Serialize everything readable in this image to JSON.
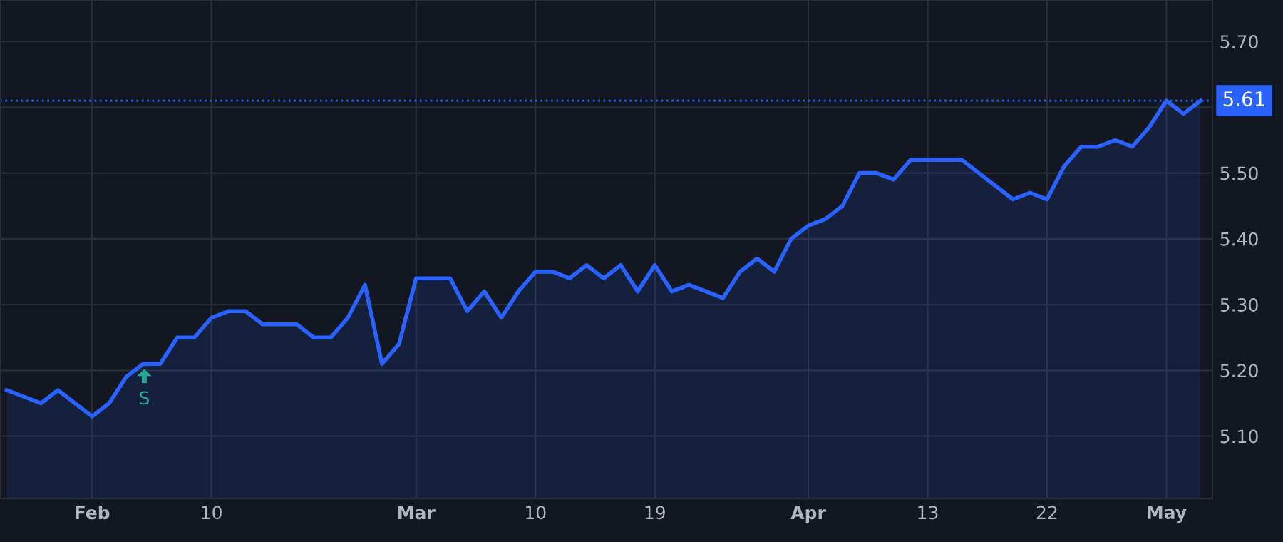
{
  "chart_data": {
    "type": "area",
    "categories": [
      null,
      null,
      null,
      null,
      null,
      "Feb",
      null,
      null,
      null,
      null,
      null,
      null,
      "10",
      null,
      null,
      null,
      null,
      null,
      null,
      null,
      null,
      null,
      null,
      null,
      "Mar",
      null,
      null,
      null,
      null,
      null,
      null,
      "10",
      null,
      null,
      null,
      null,
      null,
      null,
      "19",
      null,
      null,
      null,
      null,
      null,
      null,
      null,
      null,
      "Apr",
      null,
      null,
      null,
      null,
      null,
      null,
      "13",
      null,
      null,
      null,
      null,
      null,
      null,
      "22",
      null,
      null,
      null,
      null,
      null,
      null,
      "May",
      null,
      null
    ],
    "series": [
      {
        "color": "#2962ff",
        "values": [
          5.17,
          5.16,
          5.15,
          5.17,
          5.15,
          5.13,
          5.15,
          5.19,
          5.21,
          5.21,
          5.25,
          5.25,
          5.28,
          5.29,
          5.29,
          5.27,
          5.27,
          5.27,
          5.25,
          5.25,
          5.28,
          5.33,
          5.21,
          5.24,
          5.34,
          5.34,
          5.34,
          5.29,
          5.32,
          5.28,
          5.32,
          5.35,
          5.35,
          5.34,
          5.36,
          5.34,
          5.36,
          5.32,
          5.36,
          5.32,
          5.33,
          5.32,
          5.31,
          5.35,
          5.37,
          5.35,
          5.4,
          5.42,
          5.43,
          5.45,
          5.5,
          5.5,
          5.49,
          5.52,
          5.52,
          5.52,
          5.52,
          5.5,
          5.48,
          5.46,
          5.47,
          5.46,
          5.51,
          5.54,
          5.54,
          5.55,
          5.54,
          5.57,
          5.61,
          5.59,
          5.61
        ]
      }
    ],
    "ylim": [
      5.005,
      5.763
    ],
    "yticks": [
      {
        "value": 5.1,
        "label": "5.10"
      },
      {
        "value": 5.2,
        "label": "5.20"
      },
      {
        "value": 5.3,
        "label": "5.30"
      },
      {
        "value": 5.4,
        "label": "5.40"
      },
      {
        "value": 5.5,
        "label": "5.50"
      },
      {
        "value": 5.6,
        "label": null
      },
      {
        "value": 5.7,
        "label": "5.70"
      }
    ],
    "ref_lines": [
      {
        "axis": "y",
        "value": 5.61,
        "label": "5.61",
        "color": "#2962ff",
        "line_style": "dotted"
      }
    ],
    "annotations": [
      "S"
    ],
    "grid": true,
    "marker": "none",
    "line_style": "solid"
  }
}
